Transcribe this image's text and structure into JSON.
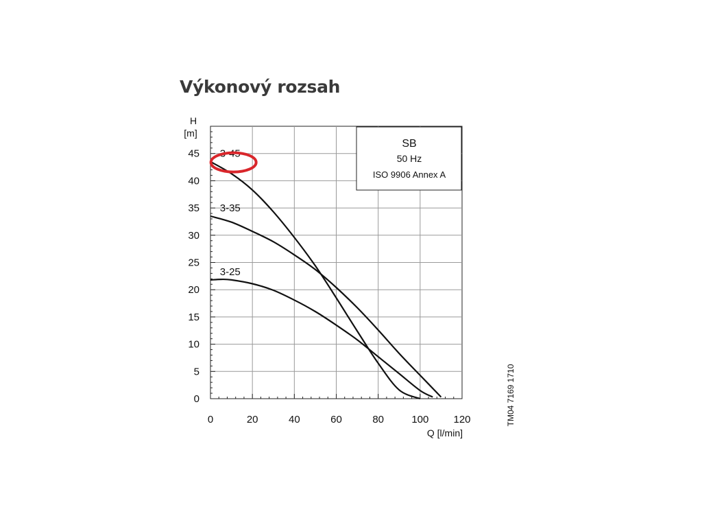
{
  "page": {
    "title": "Výkonový rozsah",
    "doc_code": "TM04 7169 1710"
  },
  "colors": {
    "curve": "#111111",
    "grid": "#999999",
    "highlight": "#d9262b"
  },
  "chart_data": {
    "type": "line",
    "title": "Výkonový rozsah",
    "xlabel": "Q [l/min]",
    "ylabel_top": "H",
    "ylabel_unit": "[m]",
    "xlim": [
      0,
      120
    ],
    "ylim": [
      0,
      50
    ],
    "xticks": [
      0,
      20,
      40,
      60,
      80,
      100,
      120
    ],
    "yticks": [
      0,
      5,
      10,
      15,
      20,
      25,
      30,
      35,
      40,
      45
    ],
    "grid": true,
    "legend_box": {
      "position": "top-right",
      "lines": [
        "SB",
        "50 Hz",
        "ISO 9906 Annex A"
      ]
    },
    "highlighted_series": "3-45",
    "series": [
      {
        "name": "3-45",
        "x": [
          0,
          10,
          20,
          30,
          40,
          50,
          60,
          70,
          80,
          90,
          100,
          110
        ],
        "y": [
          43.5,
          41.3,
          38.3,
          34.3,
          29.6,
          24.4,
          18.5,
          12.4,
          6.5,
          1.6,
          0,
          0
        ]
      },
      {
        "name": "3-35",
        "x": [
          0,
          10,
          20,
          30,
          40,
          50,
          60,
          70,
          80,
          90,
          100,
          110
        ],
        "y": [
          33.5,
          32.4,
          30.7,
          28.8,
          26.4,
          23.7,
          20.4,
          16.7,
          12.6,
          8.3,
          4.3,
          0.3
        ]
      },
      {
        "name": "3-25",
        "x": [
          0,
          5,
          10,
          20,
          30,
          40,
          50,
          60,
          70,
          80,
          90,
          100,
          106
        ],
        "y": [
          21.8,
          21.9,
          21.8,
          21.1,
          19.9,
          18.1,
          16.0,
          13.5,
          10.8,
          7.7,
          4.6,
          1.5,
          0.3
        ]
      }
    ]
  }
}
